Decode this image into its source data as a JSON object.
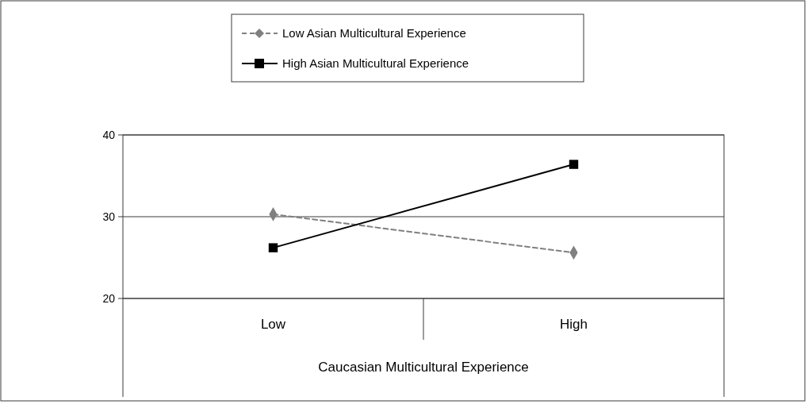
{
  "chart_data": {
    "type": "line",
    "xlabel": "Caucasian Multicultural Experience",
    "categories": [
      "Low",
      "High"
    ],
    "series": [
      {
        "name": "Low Asian Multicultural Experience",
        "color": "#808080",
        "values": [
          30.3,
          25.6
        ],
        "marker": "diamond",
        "line_style": "dashed"
      },
      {
        "name": "High Asian Multicultural Experience",
        "color": "#000000",
        "values": [
          26.2,
          36.4
        ],
        "marker": "square",
        "line_style": "solid"
      }
    ],
    "ylim": [
      20,
      40
    ],
    "yticks": [
      20,
      30,
      40
    ],
    "grid": "y",
    "legend": "top"
  }
}
